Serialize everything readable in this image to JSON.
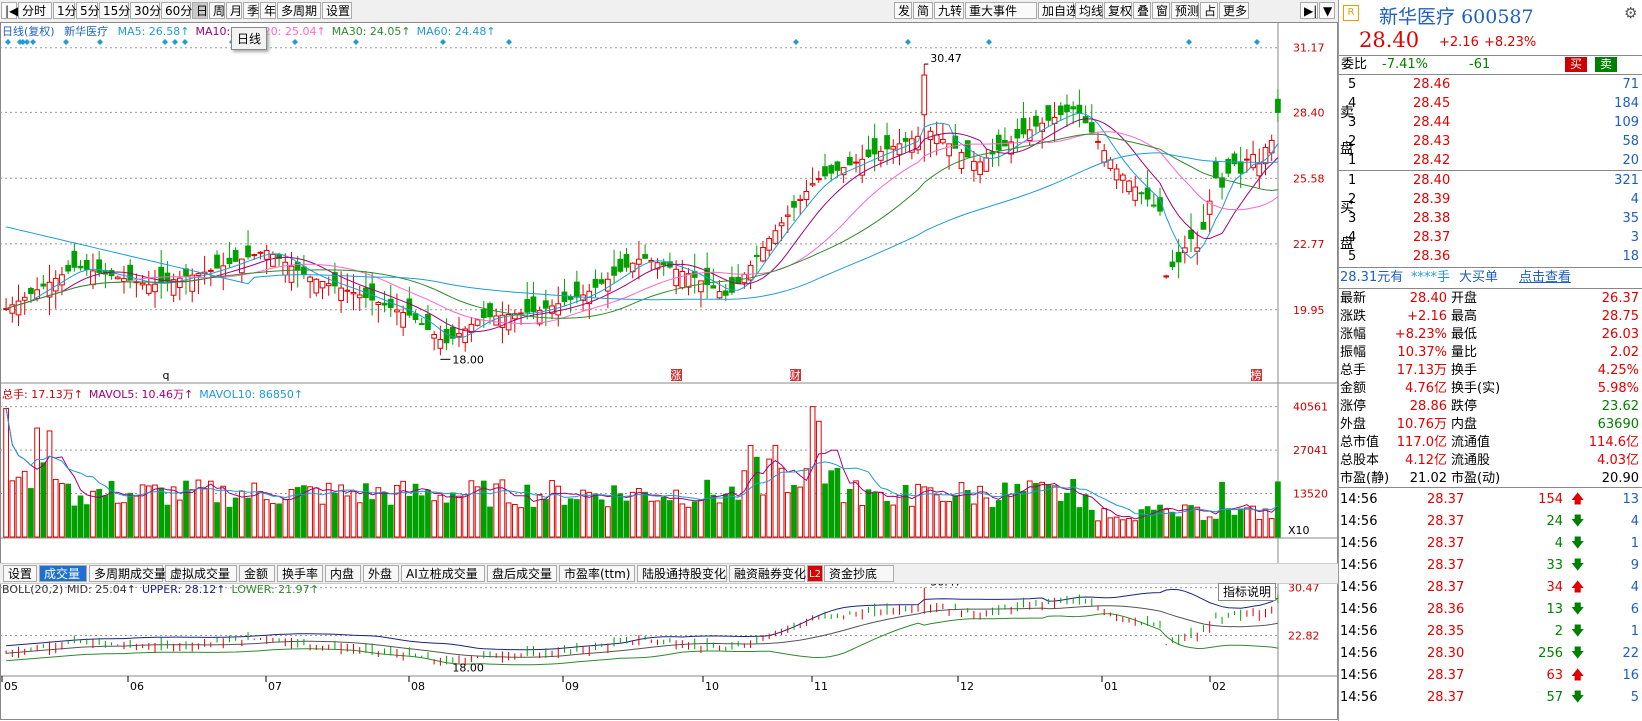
{
  "toolbar": {
    "left_items": [
      "分时",
      "1分",
      "5分",
      "15分",
      "30分",
      "60分",
      "日",
      "周",
      "月",
      "季",
      "年",
      "多周期",
      "设置"
    ],
    "active_item": "日",
    "right_items": [
      "发",
      "简",
      "九转",
      "重大事件",
      "加自选",
      "均线",
      "复权",
      "叠",
      "窗",
      "预测",
      "占",
      "更多"
    ]
  },
  "price_chart": {
    "header_title": "日线(复权)",
    "stock_name": "新华医疗",
    "ma": [
      {
        "label": "MA5: 26.58↑",
        "color": "#1f9bd7"
      },
      {
        "label": "MA10: 2",
        "color": "#a0007d"
      },
      {
        "label": "MA20: 25.04↑",
        "color": "#ff66cc"
      },
      {
        "label": "MA30: 24.05↑",
        "color": "#2e8b2e"
      },
      {
        "label": "MA60: 24.48↑",
        "color": "#1f9bd7"
      }
    ],
    "tooltip": "日线",
    "y_ticks": [
      "31.17",
      "28.40",
      "25.58",
      "22.77",
      "19.95"
    ],
    "high_label": "30.47",
    "low_label": "18.00",
    "event_marks": [
      "q",
      "涨",
      "财",
      "榜"
    ]
  },
  "volume_chart": {
    "header": [
      {
        "label": "总手: 17.13万↑",
        "color": "#c00"
      },
      {
        "label": "MAVOL5: 10.46万↑",
        "color": "#a0007d"
      },
      {
        "label": "MAVOL10: 86850↑",
        "color": "#1f9bd7"
      }
    ],
    "y_ticks": [
      "40561",
      "27041",
      "13520"
    ],
    "unit": "X10"
  },
  "indicator_tabs": {
    "items": [
      "设置",
      "成交量",
      "多周期成交量",
      "虚拟成交量",
      "金额",
      "换手率",
      "内盘",
      "外盘",
      "AI立桩成交量",
      "盘后成交量",
      "市盈率(ttm)",
      "陆股通持股变化",
      "融资融券变化",
      "资金抄底"
    ],
    "active": "成交量",
    "l2_badge": "L2"
  },
  "boll_chart": {
    "header": [
      {
        "label": "BOLL(20,2) MID: 25.04↑",
        "color": "#333"
      },
      {
        "label": "UPPER: 28.12↑",
        "color": "#1a237e"
      },
      {
        "label": "LOWER: 21.97↑",
        "color": "#2e8b2e"
      }
    ],
    "help_button": "指标说明",
    "y_ticks": [
      "30.47",
      "22.82"
    ],
    "high_label": "30.47",
    "low_label": "18.00"
  },
  "x_axis": [
    "05",
    "06",
    "07",
    "08",
    "09",
    "10",
    "11",
    "12",
    "01",
    "02"
  ],
  "quote": {
    "r_badge": "R",
    "name": "新华医疗",
    "code": "600587",
    "price": "28.40",
    "change": "+2.16",
    "change_pct": "+8.23%",
    "webi_label": "委比",
    "webi_pct": "-7.41%",
    "webi_diff": "-61",
    "buy_btn": "买",
    "sell_btn": "卖",
    "sell_side_label": [
      "卖",
      "盘"
    ],
    "buy_side_label": [
      "买",
      "盘"
    ],
    "asks": [
      {
        "level": "5",
        "price": "28.46",
        "vol": "71"
      },
      {
        "level": "4",
        "price": "28.45",
        "vol": "184"
      },
      {
        "level": "3",
        "price": "28.44",
        "vol": "109"
      },
      {
        "level": "2",
        "price": "28.43",
        "vol": "58"
      },
      {
        "level": "1",
        "price": "28.42",
        "vol": "20"
      }
    ],
    "bids": [
      {
        "level": "1",
        "price": "28.40",
        "vol": "321"
      },
      {
        "level": "2",
        "price": "28.39",
        "vol": "4"
      },
      {
        "level": "3",
        "price": "28.38",
        "vol": "35"
      },
      {
        "level": "4",
        "price": "28.37",
        "vol": "3"
      },
      {
        "level": "5",
        "price": "28.36",
        "vol": "18"
      }
    ],
    "promo": {
      "price": "28.31元有",
      "mask": "****手",
      "big": "大买单",
      "link": "点击查看"
    },
    "stats": [
      [
        "最新",
        "28.40",
        "red",
        "开盘",
        "26.37",
        "red"
      ],
      [
        "涨跌",
        "+2.16",
        "red",
        "最高",
        "28.75",
        "red"
      ],
      [
        "涨幅",
        "+8.23%",
        "red",
        "最低",
        "26.03",
        "red"
      ],
      [
        "振幅",
        "10.37%",
        "red",
        "量比",
        "2.02",
        "red"
      ],
      [
        "总手",
        "17.13万",
        "red",
        "换手",
        "4.25%",
        "red"
      ],
      [
        "金额",
        "4.76亿",
        "red",
        "换手(实)",
        "5.98%",
        "red"
      ],
      [
        "涨停",
        "28.86",
        "red",
        "跌停",
        "23.62",
        "grn"
      ],
      [
        "外盘",
        "10.76万",
        "red",
        "内盘",
        "63690",
        "grn"
      ],
      [
        "总市值",
        "117.0亿",
        "red",
        "流通值",
        "114.6亿",
        "red"
      ],
      [
        "总股本",
        "4.12亿",
        "red",
        "流通股",
        "4.03亿",
        "red"
      ],
      [
        "市盈(静)",
        "21.02",
        "blk",
        "市盈(动)",
        "20.90",
        "blk"
      ]
    ],
    "ticks": [
      {
        "time": "14:56",
        "price": "28.37",
        "vol": "154",
        "dir": "up",
        "n": "13"
      },
      {
        "time": "14:56",
        "price": "28.37",
        "vol": "24",
        "dir": "down",
        "n": "4"
      },
      {
        "time": "14:56",
        "price": "28.37",
        "vol": "4",
        "dir": "down",
        "n": "1"
      },
      {
        "time": "14:56",
        "price": "28.37",
        "vol": "33",
        "dir": "down",
        "n": "9"
      },
      {
        "time": "14:56",
        "price": "28.37",
        "vol": "34",
        "dir": "up",
        "n": "4"
      },
      {
        "time": "14:56",
        "price": "28.36",
        "vol": "13",
        "dir": "down",
        "n": "6"
      },
      {
        "time": "14:56",
        "price": "28.35",
        "vol": "2",
        "dir": "down",
        "n": "1"
      },
      {
        "time": "14:56",
        "price": "28.30",
        "vol": "256",
        "dir": "down",
        "n": "22"
      },
      {
        "time": "14:56",
        "price": "28.37",
        "vol": "63",
        "dir": "up",
        "n": "16"
      },
      {
        "time": "14:56",
        "price": "28.37",
        "vol": "57",
        "dir": "down",
        "n": "5"
      }
    ]
  },
  "colors": {
    "up": "#e00000",
    "down": "#00a000",
    "ma5": "#1f9bd7",
    "ma10": "#a0007d",
    "ma20": "#ff66cc",
    "ma30": "#2e8b2e",
    "ma60": "#1f9bd7"
  }
}
